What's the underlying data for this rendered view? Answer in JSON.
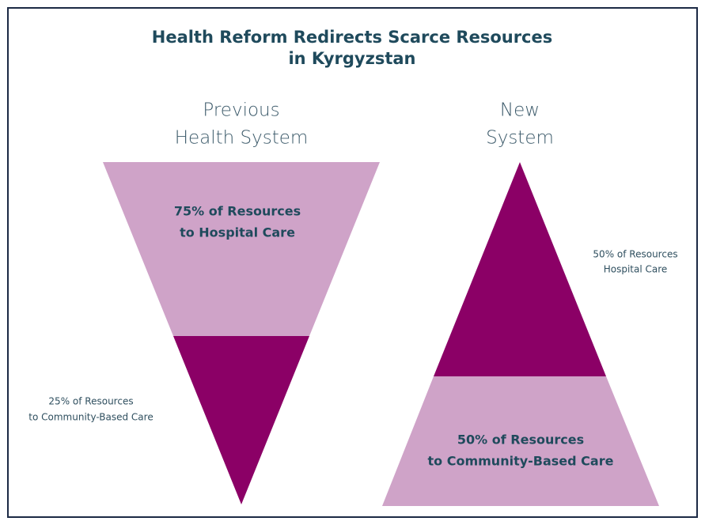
{
  "title": [
    "Health Reform Redirects Scarce Resources",
    "in Kyrgyzstan"
  ],
  "panels": [
    {
      "heading": [
        "Previous",
        "Health System"
      ],
      "inner_label": [
        "75% of Resources",
        "to Hospital Care"
      ],
      "outer_label": [
        "25% of Resources",
        "to Community-Based Care"
      ]
    },
    {
      "heading": [
        "New",
        "System"
      ],
      "inner_label": [
        "50% of Resources",
        "to Community-Based Care"
      ],
      "outer_label": [
        "50% of Resources",
        "Hospital Care"
      ]
    }
  ]
}
